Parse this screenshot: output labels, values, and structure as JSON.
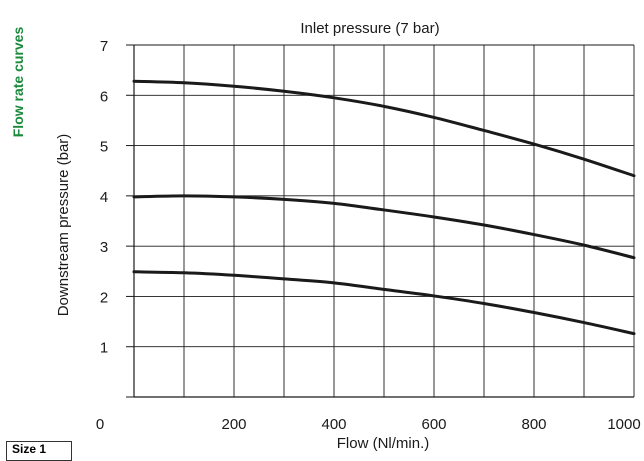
{
  "side_title": "Flow rate curves",
  "size_label": "Size 1",
  "colors": {
    "side_title": "#1a8a3c",
    "curve": "#1a1a1a",
    "grid": "#1a1a1a"
  },
  "chart_data": {
    "type": "line",
    "title": "Inlet pressure (7 bar)",
    "xlabel": "Flow (Nl/min.)",
    "ylabel": "Downstream pressure (bar)",
    "xlim": [
      0,
      1000
    ],
    "ylim": [
      0,
      7
    ],
    "x_ticks": [
      0,
      200,
      400,
      600,
      800,
      1000
    ],
    "y_ticks": [
      1,
      2,
      3,
      4,
      5,
      6,
      7
    ],
    "x_tick_labels": [
      "0",
      "200",
      "400",
      "600",
      "800",
      "1000"
    ],
    "y_tick_labels": [
      "1",
      "2",
      "3",
      "4",
      "5",
      "6",
      "7"
    ],
    "x_grid_step": 100,
    "y_grid_step": 1,
    "grid": true,
    "series": [
      {
        "x": [
          0,
          100,
          200,
          300,
          400,
          500,
          600,
          700,
          800,
          900,
          1000
        ],
        "y": [
          6.28,
          6.25,
          6.18,
          6.08,
          5.95,
          5.78,
          5.56,
          5.3,
          5.03,
          4.73,
          4.4
        ]
      },
      {
        "x": [
          0,
          100,
          200,
          300,
          400,
          500,
          600,
          700,
          800,
          900,
          1000
        ],
        "y": [
          3.98,
          4.0,
          3.98,
          3.93,
          3.85,
          3.72,
          3.58,
          3.42,
          3.23,
          3.02,
          2.77
        ]
      },
      {
        "x": [
          0,
          100,
          200,
          300,
          400,
          500,
          600,
          700,
          800,
          900,
          1000
        ],
        "y": [
          2.49,
          2.47,
          2.42,
          2.35,
          2.27,
          2.14,
          2.01,
          1.86,
          1.68,
          1.48,
          1.26
        ]
      }
    ]
  }
}
